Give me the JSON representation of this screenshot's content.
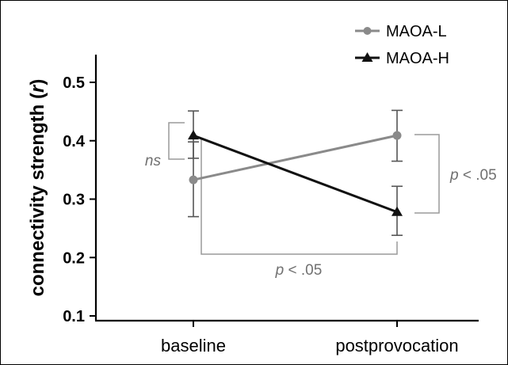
{
  "chart_data": {
    "type": "line",
    "title": "",
    "xlabel": "",
    "ylabel": "connectivity strength (r)",
    "ylabel_parts": {
      "text": "connectivity strength (",
      "symbol": "r",
      "close": ")"
    },
    "categories": [
      "baseline",
      "postprovocation"
    ],
    "ylim": [
      0.1,
      0.5
    ],
    "yticks": [
      0.1,
      0.2,
      0.3,
      0.4,
      0.5
    ],
    "ytick_labels": [
      "0.1",
      "0.2",
      "0.3",
      "0.4",
      "0.5"
    ],
    "grid": false,
    "legend_position": "top-right",
    "series": [
      {
        "name": "MAOA-L",
        "marker": "circle",
        "color": "#8a8a8a",
        "values": [
          0.333,
          0.409
        ],
        "error_low": [
          0.27,
          0.365
        ],
        "error_high": [
          0.398,
          0.452
        ]
      },
      {
        "name": "MAOA-H",
        "marker": "triangle",
        "color": "#111111",
        "values": [
          0.409,
          0.278
        ],
        "error_low": [
          0.37,
          0.238
        ],
        "error_high": [
          0.451,
          0.322
        ]
      }
    ],
    "annotations": [
      {
        "id": "baseline",
        "text": "ns"
      },
      {
        "id": "postprovocation",
        "text": "p < .05",
        "symbol": "p",
        "rest": " < .05"
      },
      {
        "id": "across",
        "text": "p < .05",
        "symbol": "p",
        "rest": " < .05"
      }
    ]
  }
}
